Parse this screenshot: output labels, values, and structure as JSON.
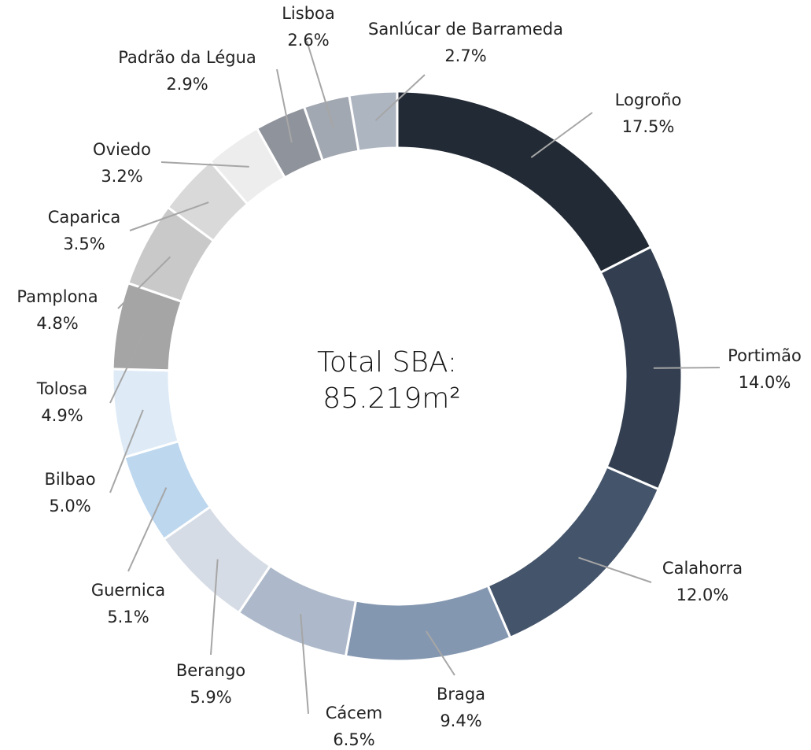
{
  "chart_data": {
    "type": "donut",
    "center_label": [
      "Total SBA:",
      "85.219m²"
    ],
    "categories": [
      "Logroño",
      "Portimão",
      "Calahorra",
      "Braga",
      "Cácem",
      "Berango",
      "Guernica",
      "Bilbao",
      "Tolosa",
      "Pamplona",
      "Caparica",
      "Oviedo",
      "Padrão da Légua",
      "Lisboa",
      "Sanlúcar de Barrameda"
    ],
    "values": [
      17.5,
      14.0,
      12.0,
      9.4,
      6.5,
      5.9,
      5.1,
      5.0,
      4.9,
      4.8,
      3.5,
      3.2,
      2.9,
      2.6,
      2.7
    ],
    "value_labels": [
      "17.5%",
      "14.0%",
      "12.0%",
      "9.4%",
      "6.5%",
      "5.9%",
      "5.1%",
      "5.0%",
      "4.9%",
      "4.8%",
      "3.5%",
      "3.2%",
      "2.9%",
      "2.6%",
      "2.7%"
    ],
    "colors": [
      "#222a35",
      "#333f50",
      "#44546a",
      "#8497b0",
      "#adb9ca",
      "#d6dce5",
      "#bdd7ee",
      "#deebf7",
      "#a5a5a5",
      "#c9c9c9",
      "#d9d9d9",
      "#ededed",
      "#8f939b",
      "#a2a8b1",
      "#adb5c1"
    ]
  }
}
